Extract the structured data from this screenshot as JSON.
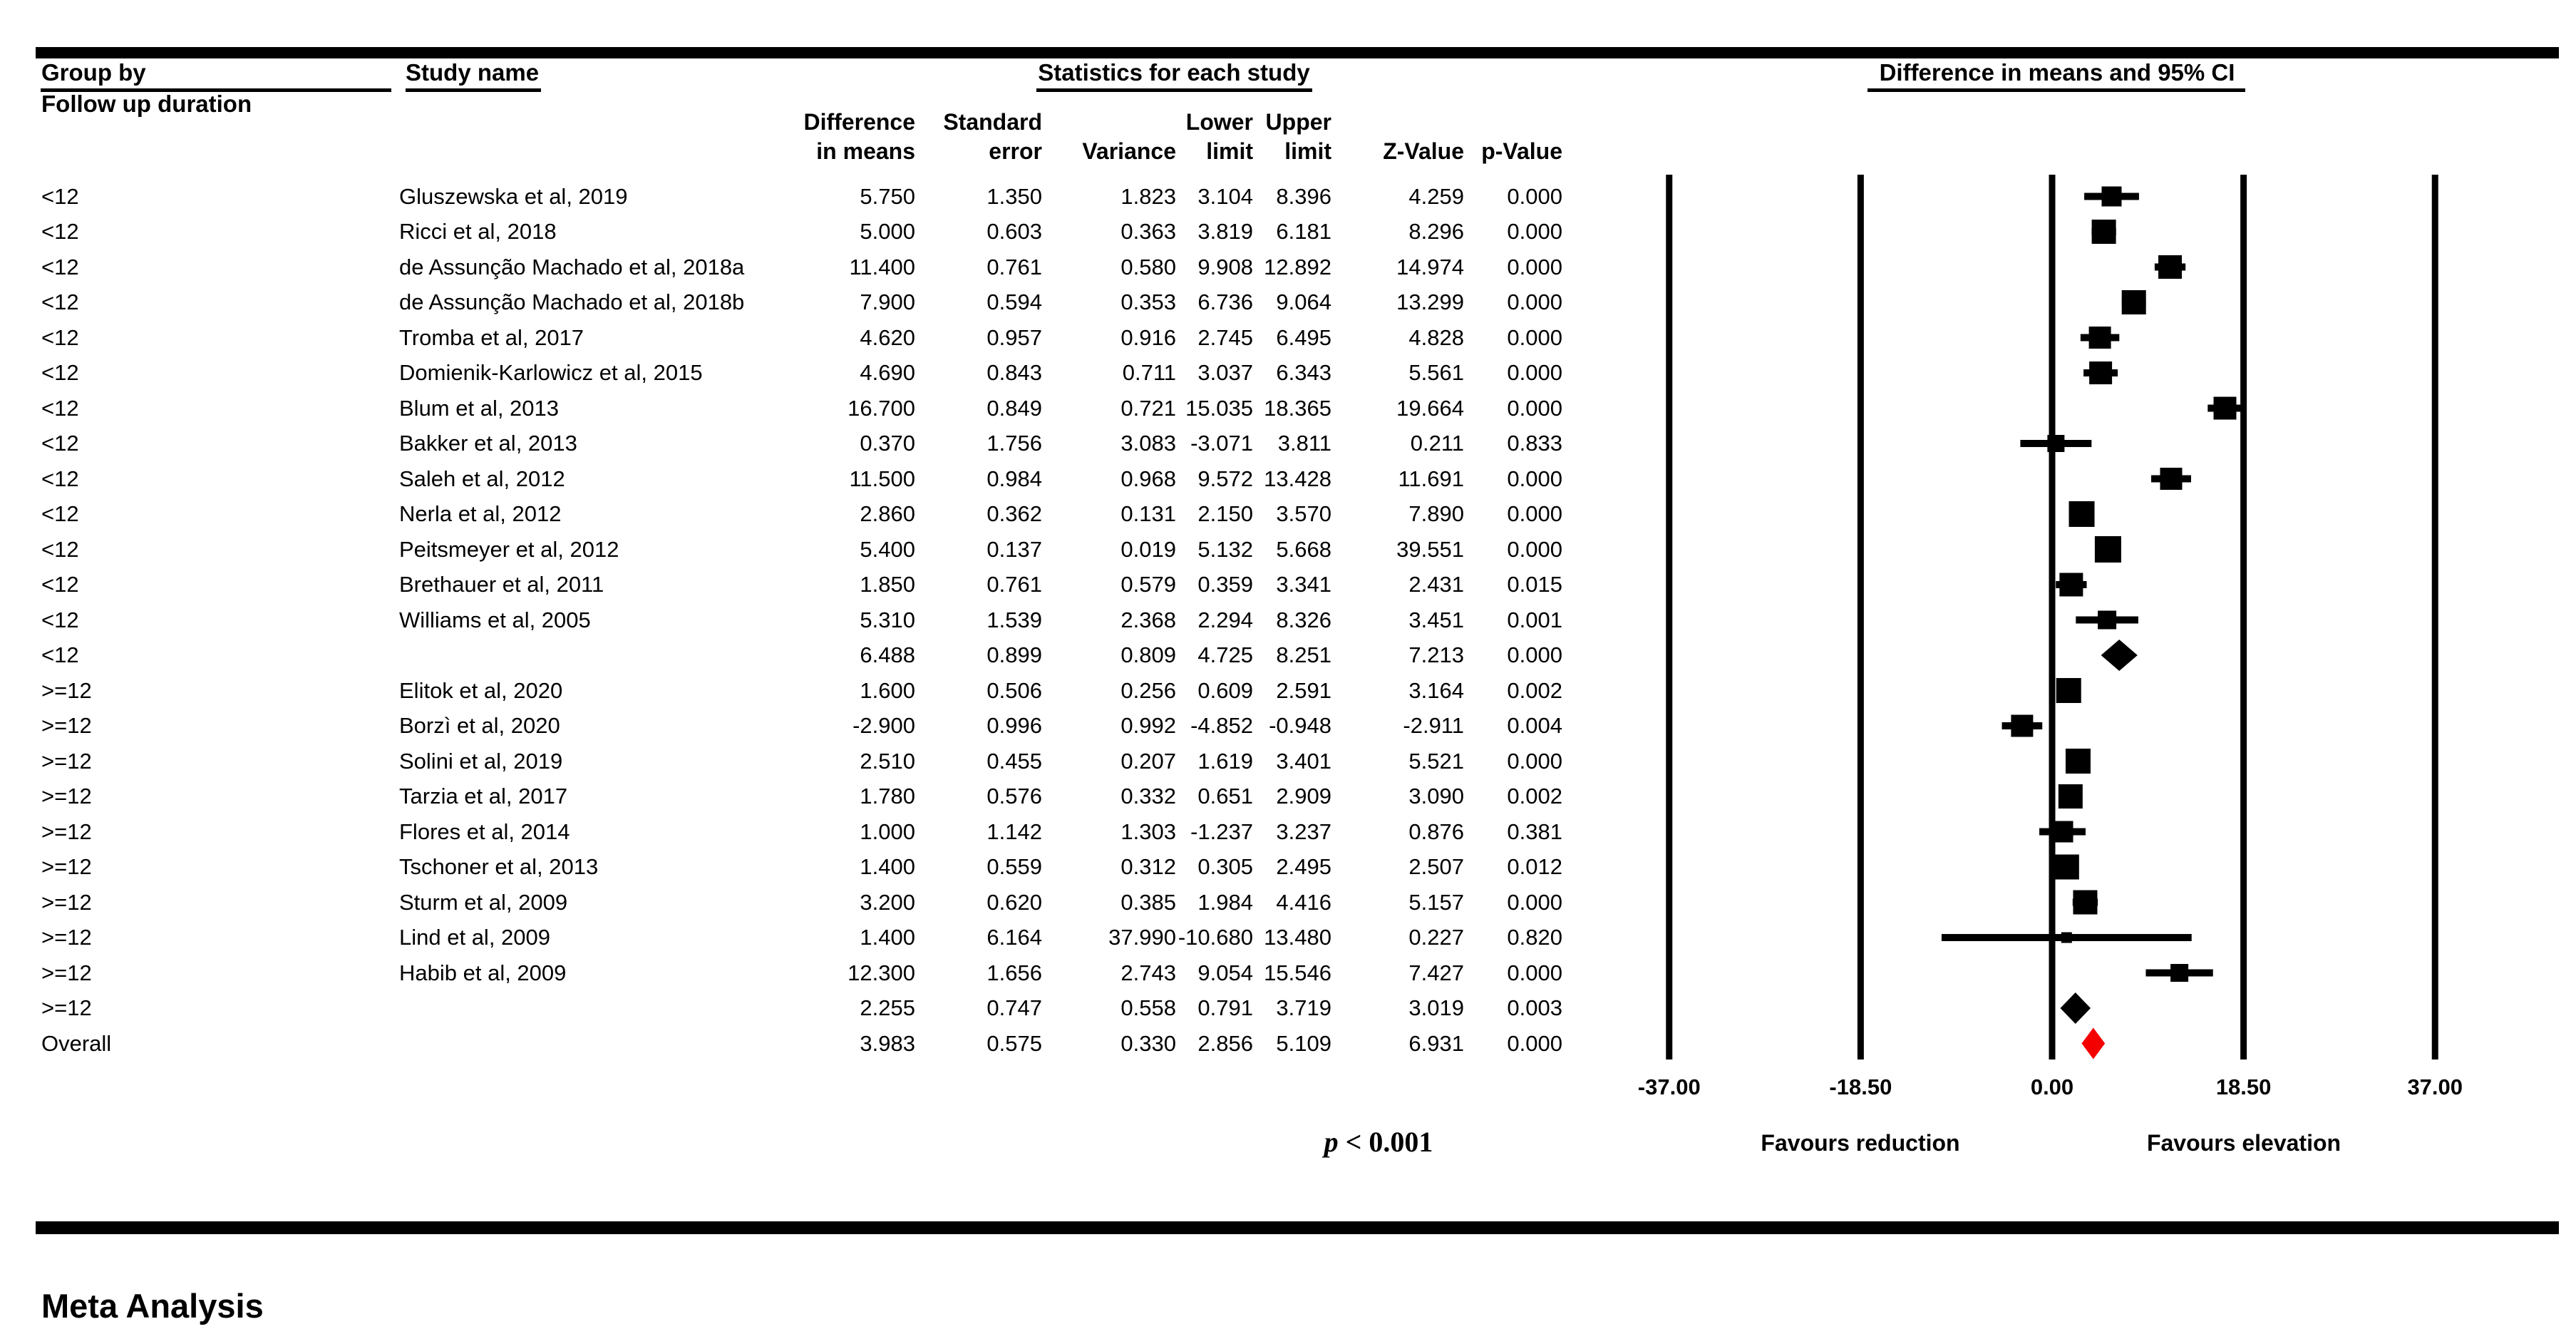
{
  "figure": {
    "header": {
      "group_by_line1": "Group by",
      "group_by_line2": "Follow up duration",
      "study_name": "Study name",
      "stats_title": "Statistics for each study",
      "plot_title": "Difference in means and 95% CI",
      "col_difference_1": "Difference",
      "col_difference_2": "in means",
      "col_se_1": "Standard",
      "col_se_2": "error",
      "col_variance": "Variance",
      "col_lower_1": "Lower",
      "col_lower_2": "limit",
      "col_upper_1": "Upper",
      "col_upper_2": "limit",
      "col_z": "Z-Value",
      "col_p": "p-Value"
    },
    "p_note": {
      "symbol": "p",
      "rest": " < 0.001"
    },
    "colors": {
      "marker": "#000000",
      "overall_diamond": "#f40000",
      "rule": "#000000"
    }
  },
  "chart_data": {
    "type": "forest",
    "title": "Difference in means and 95% CI",
    "group_by": "Follow up duration",
    "stats_section_title": "Statistics for each study",
    "columns": [
      "Difference in means",
      "Standard error",
      "Variance",
      "Lower limit",
      "Upper limit",
      "Z-Value",
      "p-Value"
    ],
    "x_ticks": [
      -37,
      -18.5,
      0,
      18.5,
      37
    ],
    "x_tick_labels": [
      "-37.00",
      "-18.50",
      "0.00",
      "18.50",
      "37.00"
    ],
    "x_axis_left_label": "Favours reduction",
    "x_axis_right_label": "Favours elevation",
    "footnote": "p < 0.001",
    "caption": "Meta Analysis",
    "studies": [
      {
        "group": "<12",
        "study": "Gluszewska et al, 2019",
        "difference_in_means": 5.75,
        "standard_error": 1.35,
        "variance": 1.823,
        "lower_limit": 3.104,
        "upper_limit": 8.396,
        "z_value": 4.259,
        "p_value": 0.0,
        "row_type": "study"
      },
      {
        "group": "<12",
        "study": "Ricci et al, 2018",
        "difference_in_means": 5.0,
        "standard_error": 0.603,
        "variance": 0.363,
        "lower_limit": 3.819,
        "upper_limit": 6.181,
        "z_value": 8.296,
        "p_value": 0.0,
        "row_type": "study"
      },
      {
        "group": "<12",
        "study": "de Assunção Machado et al, 2018a",
        "difference_in_means": 11.4,
        "standard_error": 0.761,
        "variance": 0.58,
        "lower_limit": 9.908,
        "upper_limit": 12.892,
        "z_value": 14.974,
        "p_value": 0.0,
        "row_type": "study"
      },
      {
        "group": "<12",
        "study": "de Assunção Machado et al, 2018b",
        "difference_in_means": 7.9,
        "standard_error": 0.594,
        "variance": 0.353,
        "lower_limit": 6.736,
        "upper_limit": 9.064,
        "z_value": 13.299,
        "p_value": 0.0,
        "row_type": "study"
      },
      {
        "group": "<12",
        "study": "Tromba et al, 2017",
        "difference_in_means": 4.62,
        "standard_error": 0.957,
        "variance": 0.916,
        "lower_limit": 2.745,
        "upper_limit": 6.495,
        "z_value": 4.828,
        "p_value": 0.0,
        "row_type": "study"
      },
      {
        "group": "<12",
        "study": "Domienik-Karlowicz et al, 2015",
        "difference_in_means": 4.69,
        "standard_error": 0.843,
        "variance": 0.711,
        "lower_limit": 3.037,
        "upper_limit": 6.343,
        "z_value": 5.561,
        "p_value": 0.0,
        "row_type": "study"
      },
      {
        "group": "<12",
        "study": "Blum et al, 2013",
        "difference_in_means": 16.7,
        "standard_error": 0.849,
        "variance": 0.721,
        "lower_limit": 15.035,
        "upper_limit": 18.365,
        "z_value": 19.664,
        "p_value": 0.0,
        "row_type": "study"
      },
      {
        "group": "<12",
        "study": "Bakker et al, 2013",
        "difference_in_means": 0.37,
        "standard_error": 1.756,
        "variance": 3.083,
        "lower_limit": -3.071,
        "upper_limit": 3.811,
        "z_value": 0.211,
        "p_value": 0.833,
        "row_type": "study"
      },
      {
        "group": "<12",
        "study": "Saleh et al, 2012",
        "difference_in_means": 11.5,
        "standard_error": 0.984,
        "variance": 0.968,
        "lower_limit": 9.572,
        "upper_limit": 13.428,
        "z_value": 11.691,
        "p_value": 0.0,
        "row_type": "study"
      },
      {
        "group": "<12",
        "study": "Nerla et al, 2012",
        "difference_in_means": 2.86,
        "standard_error": 0.362,
        "variance": 0.131,
        "lower_limit": 2.15,
        "upper_limit": 3.57,
        "z_value": 7.89,
        "p_value": 0.0,
        "row_type": "study"
      },
      {
        "group": "<12",
        "study": "Peitsmeyer et al, 2012",
        "difference_in_means": 5.4,
        "standard_error": 0.137,
        "variance": 0.019,
        "lower_limit": 5.132,
        "upper_limit": 5.668,
        "z_value": 39.551,
        "p_value": 0.0,
        "row_type": "study"
      },
      {
        "group": "<12",
        "study": "Brethauer et al, 2011",
        "difference_in_means": 1.85,
        "standard_error": 0.761,
        "variance": 0.579,
        "lower_limit": 0.359,
        "upper_limit": 3.341,
        "z_value": 2.431,
        "p_value": 0.015,
        "row_type": "study"
      },
      {
        "group": "<12",
        "study": "Williams et al, 2005",
        "difference_in_means": 5.31,
        "standard_error": 1.539,
        "variance": 2.368,
        "lower_limit": 2.294,
        "upper_limit": 8.326,
        "z_value": 3.451,
        "p_value": 0.001,
        "row_type": "study"
      },
      {
        "group": "<12",
        "study": "",
        "difference_in_means": 6.488,
        "standard_error": 0.899,
        "variance": 0.809,
        "lower_limit": 4.725,
        "upper_limit": 8.251,
        "z_value": 7.213,
        "p_value": 0.0,
        "row_type": "subtotal"
      },
      {
        "group": ">=12",
        "study": "Elitok et al, 2020",
        "difference_in_means": 1.6,
        "standard_error": 0.506,
        "variance": 0.256,
        "lower_limit": 0.609,
        "upper_limit": 2.591,
        "z_value": 3.164,
        "p_value": 0.002,
        "row_type": "study"
      },
      {
        "group": ">=12",
        "study": "Borzì et al, 2020",
        "difference_in_means": -2.9,
        "standard_error": 0.996,
        "variance": 0.992,
        "lower_limit": -4.852,
        "upper_limit": -0.948,
        "z_value": -2.911,
        "p_value": 0.004,
        "row_type": "study"
      },
      {
        "group": ">=12",
        "study": "Solini et al, 2019",
        "difference_in_means": 2.51,
        "standard_error": 0.455,
        "variance": 0.207,
        "lower_limit": 1.619,
        "upper_limit": 3.401,
        "z_value": 5.521,
        "p_value": 0.0,
        "row_type": "study"
      },
      {
        "group": ">=12",
        "study": "Tarzia et al, 2017",
        "difference_in_means": 1.78,
        "standard_error": 0.576,
        "variance": 0.332,
        "lower_limit": 0.651,
        "upper_limit": 2.909,
        "z_value": 3.09,
        "p_value": 0.002,
        "row_type": "study"
      },
      {
        "group": ">=12",
        "study": "Flores et al, 2014",
        "difference_in_means": 1.0,
        "standard_error": 1.142,
        "variance": 1.303,
        "lower_limit": -1.237,
        "upper_limit": 3.237,
        "z_value": 0.876,
        "p_value": 0.381,
        "row_type": "study"
      },
      {
        "group": ">=12",
        "study": "Tschoner et al, 2013",
        "difference_in_means": 1.4,
        "standard_error": 0.559,
        "variance": 0.312,
        "lower_limit": 0.305,
        "upper_limit": 2.495,
        "z_value": 2.507,
        "p_value": 0.012,
        "row_type": "study"
      },
      {
        "group": ">=12",
        "study": "Sturm et al, 2009",
        "difference_in_means": 3.2,
        "standard_error": 0.62,
        "variance": 0.385,
        "lower_limit": 1.984,
        "upper_limit": 4.416,
        "z_value": 5.157,
        "p_value": 0.0,
        "row_type": "study"
      },
      {
        "group": ">=12",
        "study": "Lind et al, 2009",
        "difference_in_means": 1.4,
        "standard_error": 6.164,
        "variance": 37.99,
        "lower_limit": -10.68,
        "upper_limit": 13.48,
        "z_value": 0.227,
        "p_value": 0.82,
        "row_type": "study"
      },
      {
        "group": ">=12",
        "study": "Habib et al, 2009",
        "difference_in_means": 12.3,
        "standard_error": 1.656,
        "variance": 2.743,
        "lower_limit": 9.054,
        "upper_limit": 15.546,
        "z_value": 7.427,
        "p_value": 0.0,
        "row_type": "study"
      },
      {
        "group": ">=12",
        "study": "",
        "difference_in_means": 2.255,
        "standard_error": 0.747,
        "variance": 0.558,
        "lower_limit": 0.791,
        "upper_limit": 3.719,
        "z_value": 3.019,
        "p_value": 0.003,
        "row_type": "subtotal"
      },
      {
        "group": "Overall",
        "study": "",
        "difference_in_means": 3.983,
        "standard_error": 0.575,
        "variance": 0.33,
        "lower_limit": 2.856,
        "upper_limit": 5.109,
        "z_value": 6.931,
        "p_value": 0.0,
        "row_type": "overall"
      }
    ]
  }
}
